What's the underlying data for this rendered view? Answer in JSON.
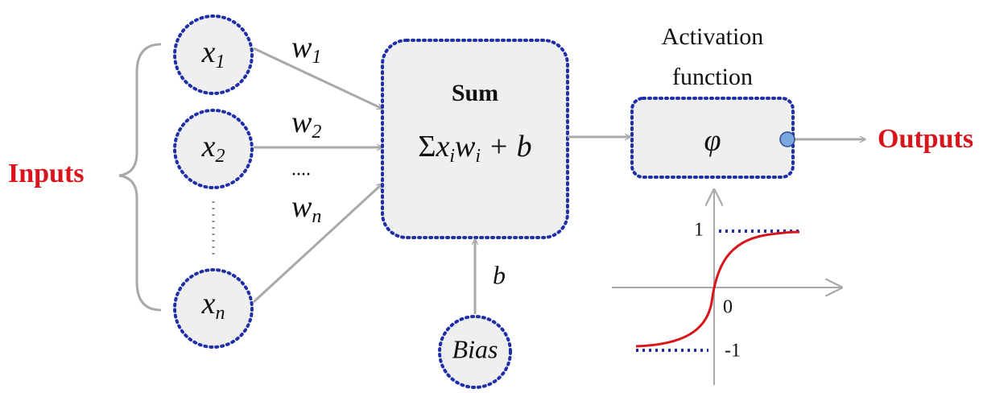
{
  "inputs_label": "Inputs",
  "outputs_label": "Outputs",
  "nodes": [
    {
      "var": "x",
      "sub": "1"
    },
    {
      "var": "x",
      "sub": "2"
    },
    {
      "var": "x",
      "sub": "n"
    }
  ],
  "weights": [
    {
      "var": "w",
      "sub": "1"
    },
    {
      "var": "w",
      "sub": "2"
    },
    {
      "var": "w",
      "sub": "n"
    }
  ],
  "weights_ellipsis": "....",
  "sum": {
    "title": "Sum",
    "formula": {
      "sigma": "Σ",
      "x": "x",
      "x_sub": "i",
      "w": "w",
      "w_sub": "i",
      "rest": " + b"
    }
  },
  "bias": {
    "label": "Bias",
    "edge_label": "b"
  },
  "activation": {
    "title_lines": [
      "Activation",
      "function"
    ],
    "symbol": "φ"
  },
  "graph": {
    "tick_labels": [
      1,
      0,
      -1
    ]
  }
}
